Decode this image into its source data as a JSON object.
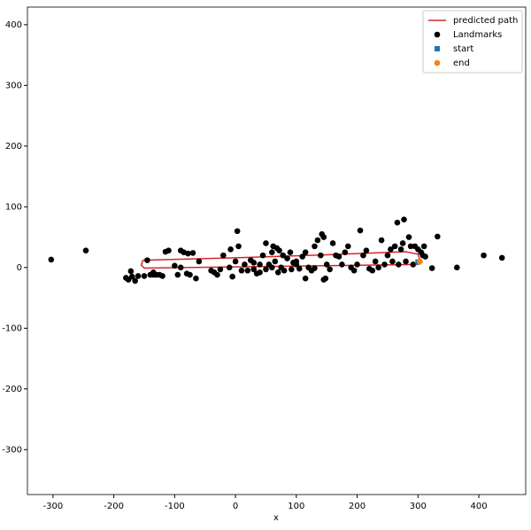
{
  "chart_data": {
    "type": "scatter",
    "x_label": "x",
    "xlim": [
      -342,
      477
    ],
    "ylim": [
      -374,
      429
    ],
    "xticks": [
      -300,
      -200,
      -100,
      0,
      100,
      200,
      300,
      400
    ],
    "yticks": [
      -300,
      -200,
      -100,
      0,
      100,
      200,
      300,
      400
    ],
    "legend": "upper right",
    "series": [
      {
        "name": "predicted path",
        "color": "#d62728",
        "marker": "line",
        "x": [
          300,
          150,
          0,
          -150,
          -155,
          -152,
          0,
          150,
          280,
          300,
          303
        ],
        "y": [
          5,
          3,
          1,
          -1,
          4,
          12,
          16,
          21,
          26,
          22,
          12
        ]
      },
      {
        "name": "Landmarks",
        "color": "#000000",
        "marker": "circle",
        "x": [
          -303,
          -246,
          323,
          364,
          408,
          438,
          332,
          266,
          277,
          205,
          3,
          -180,
          -176,
          -170,
          -172,
          -165,
          -160,
          -150,
          -145,
          -140,
          -135,
          -130,
          -120,
          -110,
          -115,
          -90,
          -85,
          -78,
          -70,
          -100,
          -95,
          -90,
          -80,
          -75,
          -65,
          -60,
          -40,
          -35,
          -30,
          -25,
          -20,
          -10,
          -8,
          -5,
          0,
          5,
          10,
          15,
          20,
          25,
          30,
          35,
          40,
          45,
          50,
          55,
          60,
          62,
          65,
          68,
          70,
          72,
          75,
          78,
          80,
          85,
          90,
          92,
          95,
          100,
          105,
          110,
          115,
          120,
          125,
          130,
          135,
          140,
          142,
          145,
          148,
          150,
          155,
          160,
          165,
          170,
          175,
          180,
          185,
          190,
          195,
          200,
          210,
          215,
          220,
          225,
          230,
          235,
          240,
          245,
          250,
          255,
          258,
          262,
          268,
          272,
          275,
          280,
          285,
          288,
          292,
          295,
          300,
          305,
          308,
          310,
          312,
          115,
          145,
          60,
          50,
          40,
          30,
          100,
          130,
          -135,
          -125
        ],
        "y": [
          13,
          28,
          -1,
          0,
          20,
          16,
          51,
          74,
          79,
          61,
          60,
          -17,
          -20,
          -15,
          -6,
          -22,
          -14,
          -14,
          12,
          -12,
          -8,
          -12,
          -14,
          28,
          26,
          28,
          25,
          23,
          24,
          3,
          -12,
          0,
          -10,
          -12,
          -18,
          10,
          -5,
          -8,
          -12,
          -3,
          20,
          0,
          30,
          -15,
          10,
          35,
          -5,
          5,
          -5,
          12,
          8,
          -10,
          -8,
          20,
          40,
          5,
          25,
          35,
          10,
          32,
          -8,
          28,
          0,
          20,
          -5,
          15,
          25,
          -3,
          8,
          5,
          -2,
          18,
          25,
          0,
          -5,
          35,
          45,
          20,
          55,
          50,
          -18,
          5,
          -3,
          40,
          20,
          18,
          5,
          25,
          35,
          0,
          -5,
          5,
          20,
          28,
          -2,
          -5,
          10,
          0,
          45,
          5,
          20,
          30,
          10,
          35,
          5,
          30,
          40,
          10,
          50,
          35,
          5,
          35,
          30,
          25,
          20,
          35,
          18,
          -18,
          -20,
          0,
          -3,
          5,
          -3,
          10,
          -1,
          -12,
          -12
        ]
      },
      {
        "name": "start",
        "color": "#1f77b4",
        "marker": "square",
        "x": [
          300
        ],
        "y": [
          9
        ]
      },
      {
        "name": "end",
        "color": "#ff7f0e",
        "marker": "circle",
        "x": [
          303
        ],
        "y": [
          10
        ]
      }
    ]
  }
}
